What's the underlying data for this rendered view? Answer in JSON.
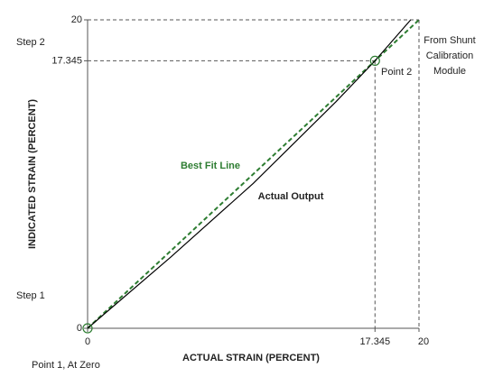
{
  "chart_data": {
    "type": "line",
    "x_label": "ACTUAL STRAIN (PERCENT)",
    "y_label": "INDICATED STRAIN (PERCENT)",
    "xlim": [
      0,
      20
    ],
    "ylim": [
      0,
      20
    ],
    "xticks": [
      0,
      17.345,
      20
    ],
    "yticks": [
      0,
      17.345,
      20
    ],
    "series": [
      {
        "name": "Best Fit Line",
        "color": "#2e7d32",
        "dashed": true,
        "x": [
          0,
          20
        ],
        "values": [
          0,
          20
        ]
      },
      {
        "name": "Actual Output",
        "color": "#000000",
        "dashed": false,
        "x": [
          0,
          5,
          10,
          15,
          17.345,
          19.5
        ],
        "values": [
          0,
          4.6,
          9.4,
          14.7,
          17.345,
          20
        ]
      }
    ],
    "annotations": {
      "step2": "Step 2",
      "step1": "Step 1",
      "point2": "Point 2",
      "point1": "Point 1, At Zero",
      "shunt": [
        "From Shunt",
        "Calibration",
        "Module"
      ]
    }
  }
}
